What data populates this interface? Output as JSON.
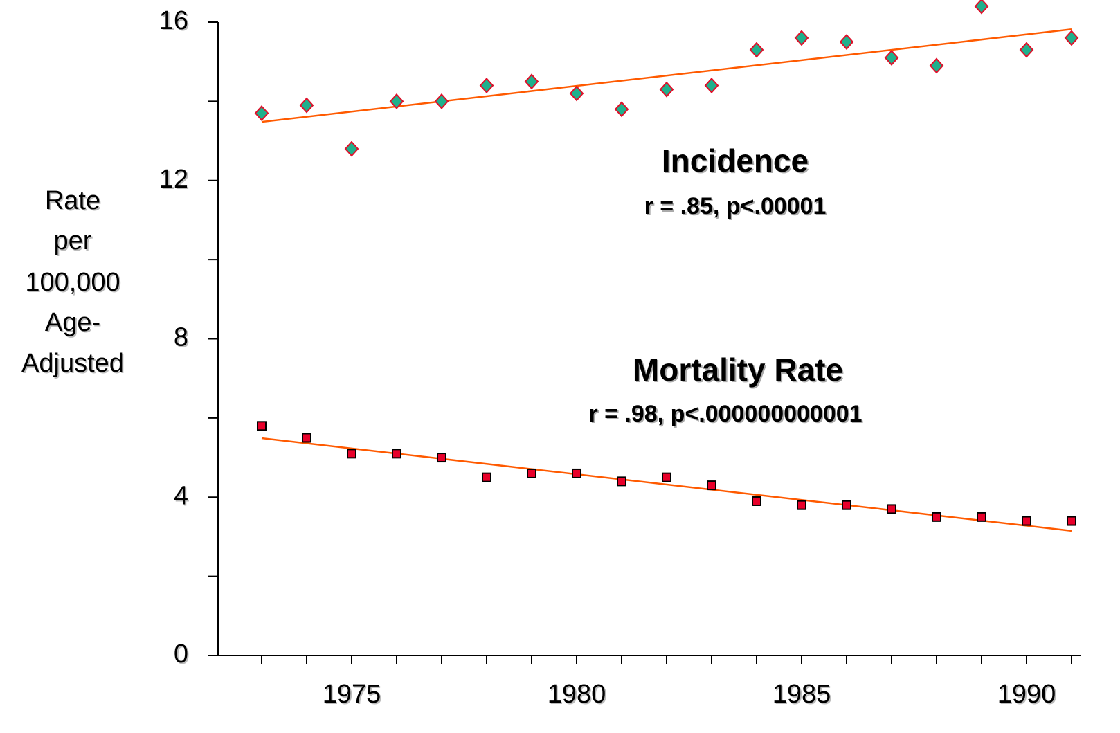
{
  "chart_data": {
    "type": "scatter",
    "ylabel": [
      "Rate",
      "per",
      "100,000",
      "Age-",
      "Adjusted"
    ],
    "x": [
      1973,
      1974,
      1975,
      1976,
      1977,
      1978,
      1979,
      1980,
      1981,
      1982,
      1983,
      1984,
      1985,
      1986,
      1987,
      1988,
      1989,
      1990,
      1991
    ],
    "series": [
      {
        "name": "Incidence",
        "annotation": "r = .85, p<.00001",
        "marker": "diamond",
        "color": "#1fb08c",
        "edge": "#e0102a",
        "values": [
          13.7,
          13.9,
          12.8,
          14.0,
          14.0,
          14.4,
          14.5,
          14.2,
          13.8,
          14.3,
          14.4,
          15.3,
          15.6,
          15.5,
          15.1,
          14.9,
          16.4,
          15.3,
          15.6
        ],
        "trend": {
          "x": [
            1973,
            1991
          ],
          "values": [
            13.48,
            15.82
          ],
          "color": "#ff5a00"
        }
      },
      {
        "name": "Mortality Rate",
        "annotation": "r = .98, p<.000000000001",
        "marker": "square",
        "color": "#e8002a",
        "edge": "#000000",
        "values": [
          5.8,
          5.5,
          5.1,
          5.1,
          5.0,
          4.5,
          4.6,
          4.6,
          4.4,
          4.5,
          4.3,
          3.9,
          3.8,
          3.8,
          3.7,
          3.5,
          3.5,
          3.4,
          3.4
        ],
        "trend": {
          "x": [
            1973,
            1991
          ],
          "values": [
            5.49,
            3.15
          ],
          "color": "#ff5a00"
        }
      }
    ],
    "xlim": [
      1972,
      1991.2
    ],
    "ylim": [
      0,
      16
    ],
    "xticks": [
      1975,
      1980,
      1985,
      1990
    ],
    "minor_xticks": [
      1973,
      1974,
      1975,
      1976,
      1977,
      1978,
      1979,
      1980,
      1981,
      1982,
      1983,
      1984,
      1985,
      1986,
      1987,
      1988,
      1989,
      1990,
      1991
    ],
    "yticks": [
      0,
      4,
      8,
      12,
      16
    ],
    "minor_yticks": [
      2,
      6,
      10,
      14
    ]
  }
}
